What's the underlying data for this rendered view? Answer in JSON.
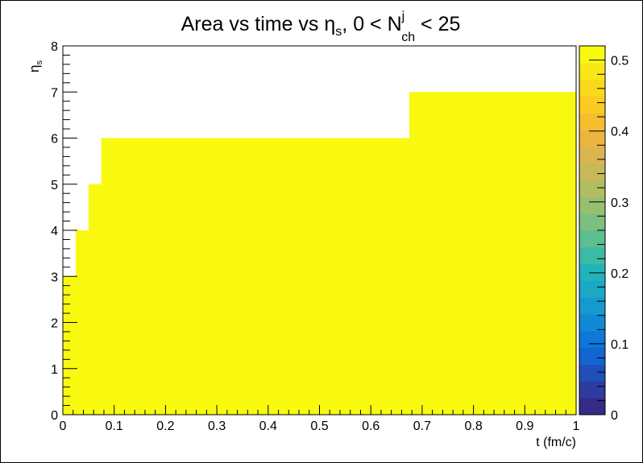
{
  "chart_data": {
    "type": "heatmap",
    "title": {
      "prefix": "Area vs time vs ",
      "eta": "η",
      "eta_sub": "s",
      "mid": ", 0 < N",
      "n_sup": "j",
      "n_sub": "ch",
      "suffix": " < 25"
    },
    "xlabel": "t (fm/c)",
    "ylabel": {
      "main": "η",
      "sub": "s"
    },
    "xlim": [
      0,
      1
    ],
    "ylim": [
      0,
      8
    ],
    "zlim": [
      0,
      0.52
    ],
    "x_ticks": [
      "0",
      "0.1",
      "0.2",
      "0.3",
      "0.4",
      "0.5",
      "0.6",
      "0.7",
      "0.8",
      "0.9",
      "1"
    ],
    "y_ticks": [
      "0",
      "1",
      "2",
      "3",
      "4",
      "5",
      "6",
      "7",
      "8"
    ],
    "z_ticks": [
      "0",
      "0.1",
      "0.2",
      "0.3",
      "0.4",
      "0.5"
    ],
    "filled_region_boundary": [
      {
        "t_from": 0.0,
        "t_to": 0.025,
        "eta_max": 3
      },
      {
        "t_from": 0.025,
        "t_to": 0.05,
        "eta_max": 4
      },
      {
        "t_from": 0.05,
        "t_to": 0.075,
        "eta_max": 5
      },
      {
        "t_from": 0.075,
        "t_to": 0.675,
        "eta_max": 6
      },
      {
        "t_from": 0.675,
        "t_to": 1.0,
        "eta_max": 7
      }
    ],
    "cell_value": 0.52,
    "fill_color": "#f9f90f",
    "palette": [
      "#352a87",
      "#2d3c9e",
      "#1f4fb8",
      "#1464d1",
      "#0f77d8",
      "#1189d4",
      "#169acd",
      "#1aa8c5",
      "#22b3b8",
      "#3cbaa4",
      "#5cbe91",
      "#7cbf7e",
      "#98bf6f",
      "#b1bd62",
      "#c7b958",
      "#dbb550",
      "#ebb540",
      "#f6bd2f",
      "#fbcb24",
      "#fad91d",
      "#f8e817",
      "#f9f90f"
    ],
    "legend": "colorbar-right",
    "grid": false
  }
}
